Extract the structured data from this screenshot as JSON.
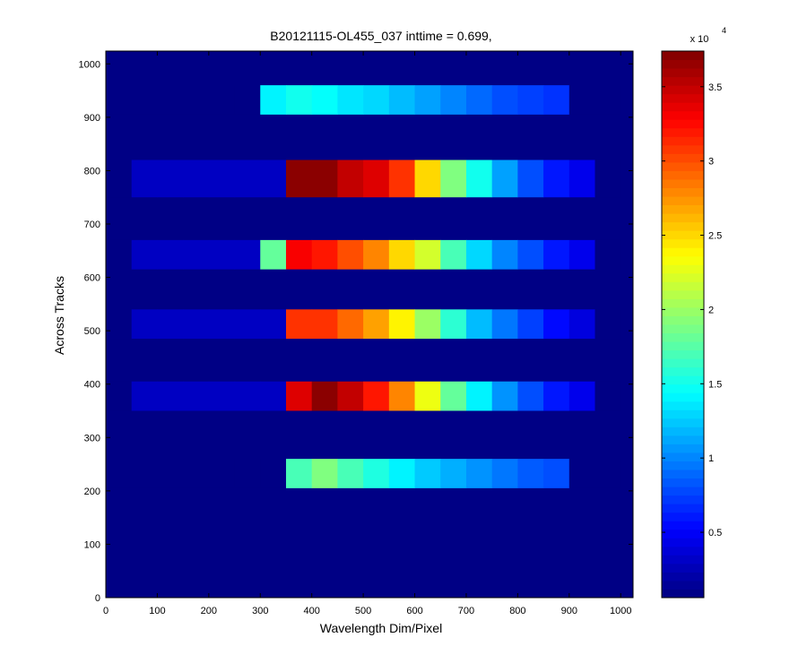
{
  "chart_data": {
    "type": "heatmap",
    "title": "B20121115-OL455_037 inttime = 0.699,",
    "x_label": "Wavelength Dim/Pixel",
    "y_label": "Across Tracks",
    "xlim": [
      0,
      1024
    ],
    "ylim": [
      0,
      1024
    ],
    "xticks": [
      0,
      100,
      200,
      300,
      400,
      500,
      600,
      700,
      800,
      900,
      1000
    ],
    "yticks": [
      0,
      100,
      200,
      300,
      400,
      500,
      600,
      700,
      800,
      900,
      1000
    ],
    "colormap": "jet",
    "clim": [
      600,
      37400
    ],
    "background_value": 800,
    "colorbar_multiplier": "x 10",
    "colorbar_exponent": "4",
    "colorbar_ticks": [
      {
        "value": 5000,
        "label": "0.5"
      },
      {
        "value": 10000,
        "label": "1"
      },
      {
        "value": 15000,
        "label": "1.5"
      },
      {
        "value": 20000,
        "label": "2"
      },
      {
        "value": 25000,
        "label": "2.5"
      },
      {
        "value": 30000,
        "label": "3"
      },
      {
        "value": 35000,
        "label": "3.5"
      }
    ],
    "x_edges": [
      0,
      50,
      100,
      150,
      200,
      250,
      300,
      350,
      400,
      450,
      500,
      550,
      600,
      650,
      700,
      750,
      800,
      850,
      900,
      950,
      1000
    ],
    "rows": [
      {
        "y": [
          905,
          960
        ],
        "values": [
          800,
          800,
          800,
          800,
          800,
          800,
          14000,
          15000,
          14500,
          13500,
          13000,
          12000,
          11000,
          10000,
          9000,
          8000,
          7500,
          7000,
          800,
          800
        ]
      },
      {
        "y": [
          750,
          820
        ],
        "values": [
          800,
          3000,
          3000,
          3000,
          3000,
          3000,
          3000,
          37000,
          37000,
          35000,
          34000,
          31000,
          25000,
          19000,
          15000,
          11000,
          8000,
          6000,
          4500,
          800
        ]
      },
      {
        "y": [
          615,
          670
        ],
        "values": [
          800,
          3000,
          3000,
          3000,
          3000,
          3000,
          18000,
          33000,
          32000,
          30000,
          28000,
          25000,
          22000,
          17000,
          13000,
          10000,
          8000,
          6000,
          4500,
          800
        ]
      },
      {
        "y": [
          485,
          540
        ],
        "values": [
          800,
          3000,
          3000,
          3000,
          3000,
          3000,
          3000,
          31000,
          31000,
          29000,
          27000,
          24000,
          20000,
          16000,
          12000,
          9500,
          7500,
          5500,
          4000,
          800
        ]
      },
      {
        "y": [
          350,
          405
        ],
        "values": [
          800,
          3000,
          3000,
          3000,
          3000,
          3000,
          3000,
          34000,
          37000,
          35000,
          32000,
          28000,
          23000,
          18000,
          14000,
          10500,
          8000,
          6000,
          4500,
          800
        ]
      },
      {
        "y": [
          205,
          260
        ],
        "values": [
          800,
          800,
          800,
          800,
          800,
          800,
          800,
          17000,
          19000,
          17000,
          15500,
          14000,
          12500,
          11500,
          10500,
          9500,
          8500,
          8000,
          800,
          800
        ]
      }
    ]
  }
}
